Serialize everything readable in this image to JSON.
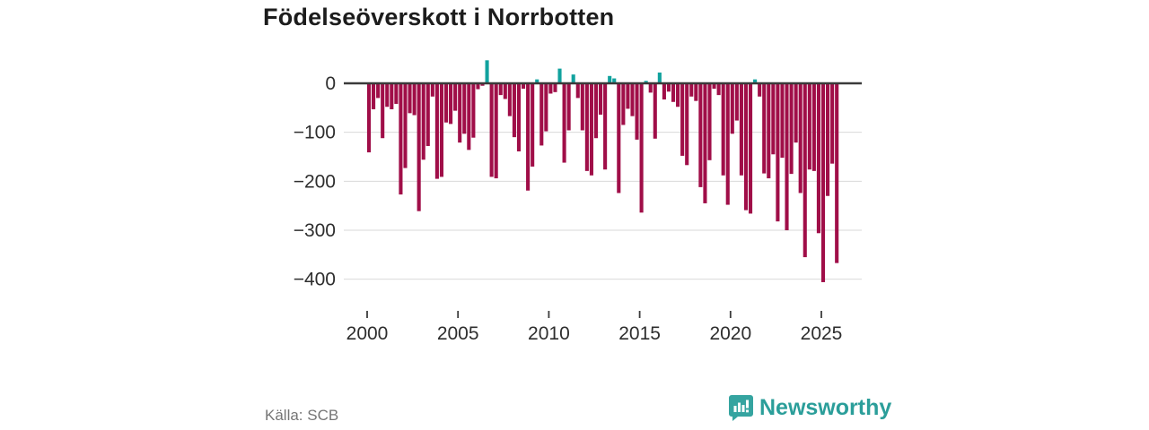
{
  "title": "Födelseöverskott i Norrbotten",
  "source": "Källa: SCB",
  "logo": {
    "text": "Newsworthy",
    "icon": "newsworthy-speech-bubble-chart",
    "color": "#2B9E9A"
  },
  "chart_data": {
    "type": "bar",
    "title": "Födelseöverskott i Norrbotten",
    "xlabel": "",
    "ylabel": "",
    "frequency": "quarterly",
    "x_start": "2000Q1",
    "x_end": "2025Q4",
    "grid": true,
    "legend": "none",
    "ylim": [
      -430,
      60
    ],
    "colors": {
      "negative": "#A00E48",
      "positive": "#11A29E",
      "axis": "#3a3a3a",
      "gridline": "#d9d9d9",
      "tick_text": "#2e2e2e"
    },
    "y_ticks": [
      {
        "value": 0,
        "label": "0"
      },
      {
        "value": -100,
        "label": "−100"
      },
      {
        "value": -200,
        "label": "−200"
      },
      {
        "value": -300,
        "label": "−300"
      },
      {
        "value": -400,
        "label": "−400"
      }
    ],
    "x_ticks": [
      {
        "value": 2000,
        "label": "2000"
      },
      {
        "value": 2005,
        "label": "2005"
      },
      {
        "value": 2010,
        "label": "2010"
      },
      {
        "value": 2015,
        "label": "2015"
      },
      {
        "value": 2020,
        "label": "2020"
      },
      {
        "value": 2025,
        "label": "2025"
      }
    ],
    "series": [
      {
        "name": "Födelseöverskott",
        "values": [
          -141,
          -53,
          -30,
          -112,
          -48,
          -53,
          -42,
          -227,
          -173,
          -61,
          -65,
          -261,
          -156,
          -128,
          -27,
          -195,
          -191,
          -80,
          -83,
          -56,
          -121,
          -103,
          -136,
          -111,
          -12,
          -5,
          47,
          -191,
          -194,
          -24,
          -32,
          -67,
          -110,
          -139,
          -11,
          -219,
          -170,
          8,
          -127,
          -98,
          -21,
          -18,
          30,
          -162,
          -96,
          18,
          -30,
          -96,
          -179,
          -188,
          -112,
          -64,
          -176,
          15,
          10,
          -224,
          -85,
          -52,
          -67,
          -115,
          -264,
          5,
          -19,
          -113,
          22,
          -33,
          -17,
          -38,
          -48,
          -148,
          -167,
          -27,
          -36,
          -212,
          -245,
          -157,
          -11,
          -24,
          -188,
          -248,
          -103,
          -76,
          -188,
          -259,
          -266,
          8,
          -27,
          -184,
          -194,
          -145,
          -282,
          -152,
          -300,
          -185,
          -121,
          -224,
          -355,
          -176,
          -179,
          -306,
          -406,
          -230,
          -164,
          -367
        ]
      }
    ]
  }
}
